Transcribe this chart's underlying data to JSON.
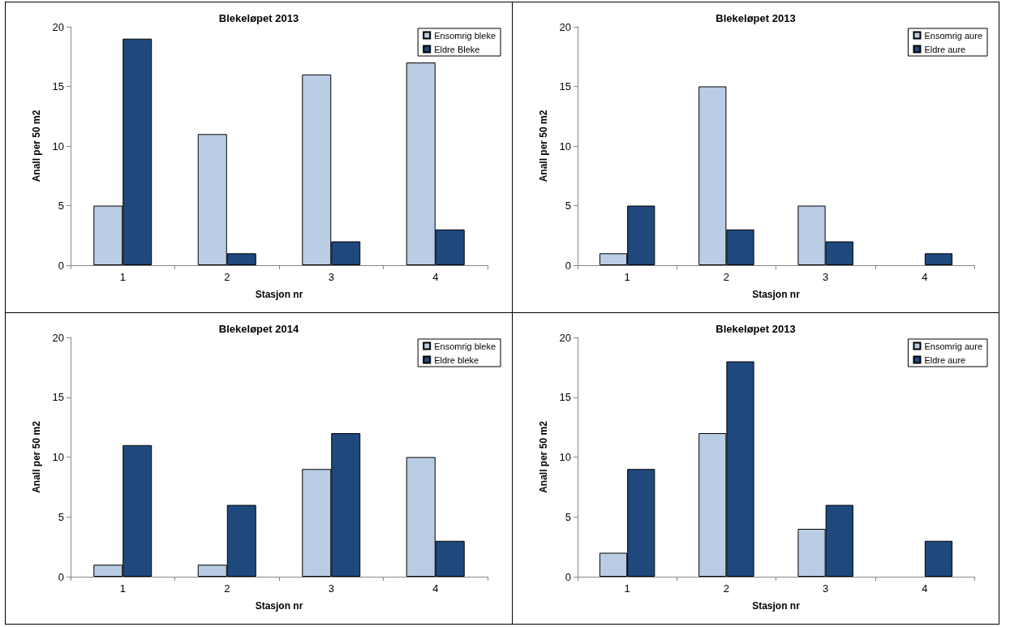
{
  "chart_data": [
    {
      "type": "bar",
      "title": "Blekeløpet 2013",
      "xlabel": "Stasjon nr",
      "ylabel": "Anall per 50 m2",
      "categories": [
        "1",
        "2",
        "3",
        "4"
      ],
      "ylim": [
        0,
        20
      ],
      "yticks": [
        0,
        5,
        10,
        15,
        20
      ],
      "grid": false,
      "legend": "top right",
      "series": [
        {
          "name": "Ensomrig bleke",
          "color": "#b9cde5",
          "values": [
            5,
            11,
            16,
            17
          ]
        },
        {
          "name": "Eldre Bleke",
          "color": "#1f497d",
          "values": [
            19,
            1,
            2,
            3
          ]
        }
      ]
    },
    {
      "type": "bar",
      "title": "Blekeløpet 2013",
      "xlabel": "Stasjon nr",
      "ylabel": "Anall per 50 m2",
      "categories": [
        "1",
        "2",
        "3",
        "4"
      ],
      "ylim": [
        0,
        20
      ],
      "yticks": [
        0,
        5,
        10,
        15,
        20
      ],
      "grid": false,
      "legend": "top right",
      "series": [
        {
          "name": "Ensomrig aure",
          "color": "#b9cde5",
          "values": [
            1,
            15,
            5,
            null
          ]
        },
        {
          "name": "Eldre aure",
          "color": "#1f497d",
          "values": [
            5,
            3,
            2,
            1
          ]
        }
      ]
    },
    {
      "type": "bar",
      "title": "Blekeløpet 2014",
      "xlabel": "Stasjon nr",
      "ylabel": "Anall per 50 m2",
      "categories": [
        "1",
        "2",
        "3",
        "4"
      ],
      "ylim": [
        0,
        20
      ],
      "yticks": [
        0,
        5,
        10,
        15,
        20
      ],
      "grid": false,
      "legend": "top right",
      "series": [
        {
          "name": "Ensomrig bleke",
          "color": "#b9cde5",
          "values": [
            1,
            1,
            9,
            10
          ]
        },
        {
          "name": "Eldre bleke",
          "color": "#1f497d",
          "values": [
            11,
            6,
            12,
            3
          ]
        }
      ]
    },
    {
      "type": "bar",
      "title": "Blekeløpet 2013",
      "xlabel": "Stasjon nr",
      "ylabel": "Anall per 50 m2",
      "categories": [
        "1",
        "2",
        "3",
        "4"
      ],
      "ylim": [
        0,
        20
      ],
      "yticks": [
        0,
        5,
        10,
        15,
        20
      ],
      "grid": false,
      "legend": "top right",
      "series": [
        {
          "name": "Ensomrig aure",
          "color": "#b9cde5",
          "values": [
            2,
            12,
            4,
            null
          ]
        },
        {
          "name": "Eldre aure",
          "color": "#1f497d",
          "values": [
            9,
            18,
            6,
            3
          ]
        }
      ]
    }
  ]
}
